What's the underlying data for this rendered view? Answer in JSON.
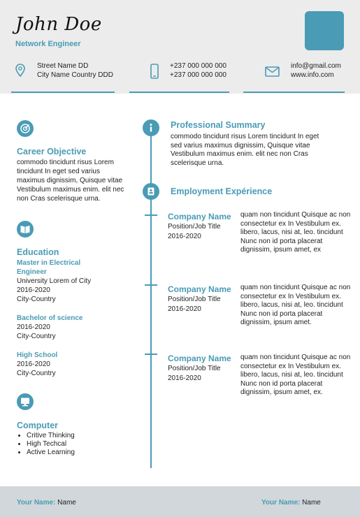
{
  "header": {
    "name": "John Doe",
    "role": "Network Engineer",
    "address_line1": "Street Name DD",
    "address_line2": "City Name Country DDD",
    "phone_line1": "+237 000 000 000",
    "phone_line2": "+237 000 000 000",
    "email": "info@gmail.com",
    "website": "www.info.com"
  },
  "colors": {
    "accent": "#4a9bb5",
    "header_bg": "#ececec",
    "footer_bg": "#d1d7da"
  },
  "left": {
    "career": {
      "title": "Career Objective",
      "text": "commodo tincidunt risus Lorem tincidunt In eget sed varius maximus dignissim, Quisque vitae Vestibulum maximus enim. elit nec non Cras scelerisque urna."
    },
    "education": {
      "title": "Education",
      "items": [
        {
          "degree": "Master in Electrical Engineer",
          "school": "University Lorem of City",
          "years": "2016-2020",
          "place": "City-Country"
        },
        {
          "degree": "Bachelor of science",
          "years": "2016-2020",
          "place": "City-Country"
        },
        {
          "degree": "High School",
          "years": "2016-2020",
          "place": "City-Country"
        }
      ]
    },
    "computer": {
      "title": "Computer",
      "skills": [
        "Critive Thinking",
        "High Techcal",
        "Active Learning"
      ]
    }
  },
  "right": {
    "summary": {
      "title": "Professional Summary",
      "text": "commodo tincidunt risus Lorem tincidunt In eget sed varius maximus dignissim, Quisque vitae Vestibulum maximus enim. elit nec non Cras scelerisque urna."
    },
    "employment": {
      "title": "Employment Expérience",
      "jobs": [
        {
          "company": "Company Name",
          "position": "Position/Job Title",
          "years": "2016-2020",
          "desc": "quam non tincidunt Quisque ac non consectetur ex In Vestibulum ex. libero, lacus, nisi at, leo. tincidunt Nunc non id porta placerat dignissim, ipsum amet, ex"
        },
        {
          "company": "Company Name",
          "position": "Position/Job Title",
          "years": "2016-2020",
          "desc": "quam non tincidunt Quisque ac non consectetur ex In Vestibulum ex. libero, lacus, nisi at, leo. tincidunt Nunc non id porta placerat dignissim, ipsum amet."
        },
        {
          "company": "Company Name",
          "position": "Position/Job Title",
          "years": "2016-2020",
          "desc": "quam non tincidunt Quisque ac non consectetur ex In Vestibulum ex. libero, lacus, nisi at, leo. tincidunt Nunc non id porta placerat dignissim, ipsum amet, ex."
        }
      ]
    }
  },
  "footer": {
    "left_label": "Your Name:",
    "left_value": "Name",
    "right_label": "Your Name:",
    "right_value": "Name"
  },
  "icons": [
    "location-icon",
    "phone-icon",
    "mail-icon",
    "target-icon",
    "book-icon",
    "monitor-icon",
    "info-icon",
    "badge-icon"
  ]
}
